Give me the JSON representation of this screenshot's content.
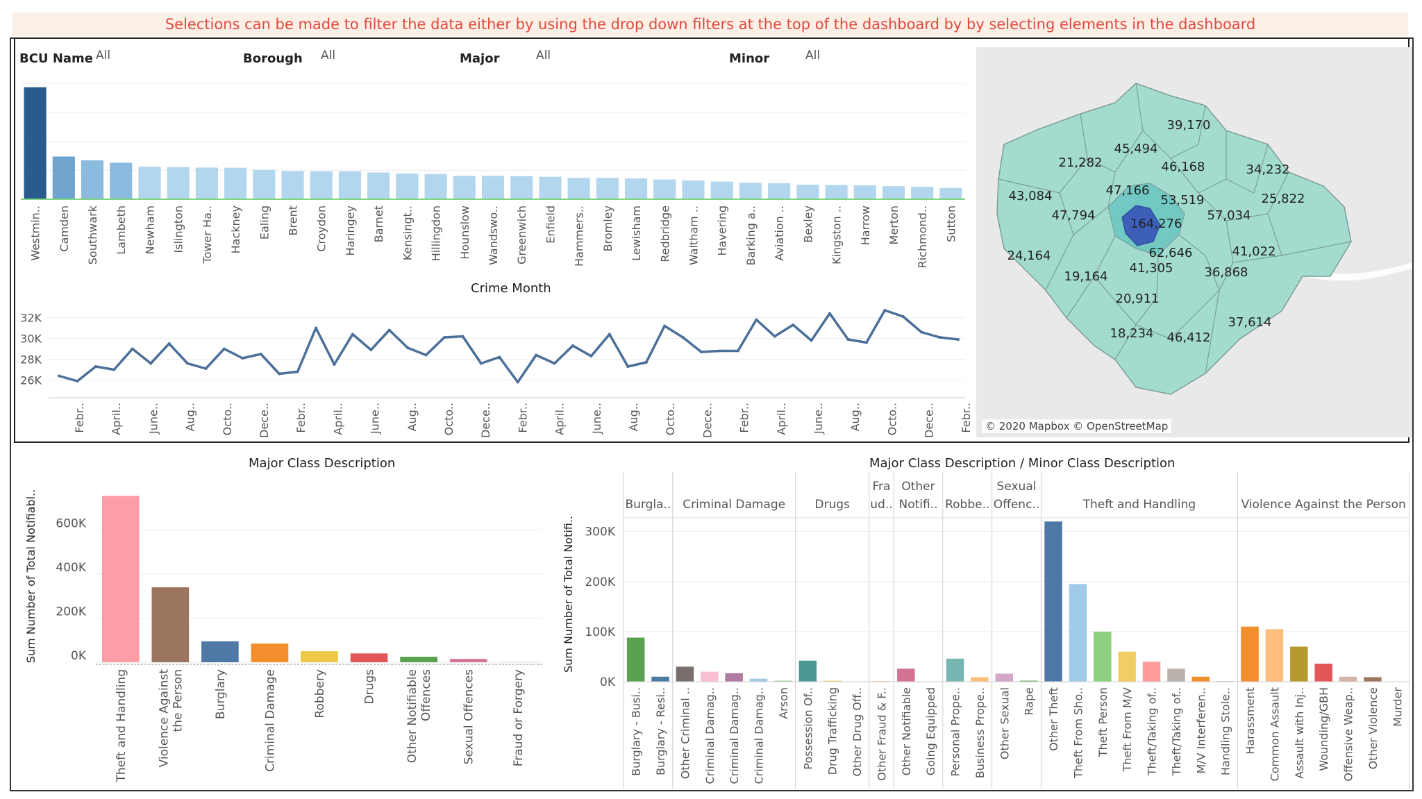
{
  "banner": "Selections can be made to filter the data either by using the drop down filters at the top of the dashboard by by selecting elements in the dashboard",
  "filters": [
    {
      "label": "BCU Name",
      "value": "All"
    },
    {
      "label": "Borough",
      "value": "All"
    },
    {
      "label": "Major",
      "value": "All"
    },
    {
      "label": "Minor",
      "value": "All"
    }
  ],
  "map": {
    "attribution": "© 2020 Mapbox © OpenStreetMap",
    "labels": [
      "39,170",
      "45,494",
      "21,282",
      "46,168",
      "34,232",
      "47,166",
      "53,519",
      "25,822",
      "43,084",
      "47,794",
      "164,276",
      "57,034",
      "62,646",
      "41,022",
      "24,164",
      "19,164",
      "41,305",
      "36,868",
      "20,911",
      "18,234",
      "46,412",
      "37,614"
    ]
  },
  "chart_data": [
    {
      "type": "bar",
      "categories": [
        "Westmin..",
        "Camden",
        "Southwark",
        "Lambeth",
        "Newham",
        "Islington",
        "Tower Ha..",
        "Hackney",
        "Ealing",
        "Brent",
        "Croydon",
        "Haringey",
        "Barnet",
        "Kensingt..",
        "Hillingdon",
        "Hounslow",
        "Wandswo..",
        "Greenwich",
        "Enfield",
        "Hammers..",
        "Bromley",
        "Lewisham",
        "Redbridge",
        "Waltham ..",
        "Havering",
        "Barking a..",
        "Aviation ..",
        "Bexley",
        "Kingston ..",
        "Harrow",
        "Merton",
        "Richmond..",
        "Sutton"
      ],
      "values": [
        164276,
        62646,
        57034,
        53519,
        47794,
        47166,
        46412,
        46168,
        43084,
        41305,
        41022,
        41022,
        39170,
        37614,
        36868,
        34232,
        34232,
        33900,
        33000,
        31500,
        31500,
        30500,
        29000,
        27500,
        25822,
        24164,
        23400,
        21282,
        20911,
        20500,
        19164,
        18234,
        16500
      ],
      "title": ""
    },
    {
      "type": "line",
      "title": "Crime Month",
      "x_tick_labels": [
        "Febr..",
        "April..",
        "June..",
        "Aug..",
        "Octo..",
        "Dece..",
        "Febr..",
        "April..",
        "June..",
        "Aug..",
        "Octo..",
        "Dece..",
        "Febr..",
        "April..",
        "June..",
        "Aug..",
        "Octo..",
        "Dece..",
        "Febr..",
        "April..",
        "June..",
        "Aug..",
        "Octo..",
        "Dece..",
        "Febr.."
      ],
      "y_tick_labels": [
        "26K",
        "28K",
        "30K",
        "32K"
      ],
      "ylim": [
        24500,
        32500
      ],
      "values": [
        26400,
        25900,
        27300,
        27000,
        29000,
        27600,
        29500,
        27600,
        27100,
        29000,
        28100,
        28500,
        26600,
        26800,
        31000,
        27500,
        30400,
        28900,
        30800,
        29100,
        28400,
        30100,
        30200,
        27600,
        28200,
        25800,
        28400,
        27600,
        29300,
        28300,
        30400,
        27300,
        27700,
        31200,
        30100,
        28700,
        28800,
        28800,
        31800,
        30200,
        31300,
        29800,
        32400,
        29900,
        29600,
        32700,
        32100,
        30600,
        30100,
        29900
      ],
      "color": "#4a6f99"
    },
    {
      "type": "bar",
      "title": "Major Class Description",
      "ylabel": "Sum Number of Total Notifiabl..",
      "y_tick_labels": [
        "0K",
        "200K",
        "400K",
        "600K"
      ],
      "ylim": [
        0,
        800000
      ],
      "categories": [
        "Theft and Handling",
        "Violence Against the Person",
        "Burglary",
        "Criminal Damage",
        "Robbery",
        "Drugs",
        "Other Notifiable Offences",
        "Sexual Offences",
        "Fraud or Forgery"
      ],
      "values": [
        755000,
        340000,
        95000,
        85000,
        50000,
        40000,
        25000,
        15000,
        1000
      ],
      "colors": [
        "#ff9da7",
        "#9c755f",
        "#4e79a7",
        "#f28e2b",
        "#edc948",
        "#e15759",
        "#59a14f",
        "#d37295",
        "#76b7b2"
      ]
    },
    {
      "type": "bar",
      "title": "Major Class Description / Minor Class Description",
      "ylabel": "Sum Number of Total Notifi..",
      "y_tick_labels": [
        "0K",
        "100K",
        "200K",
        "300K"
      ],
      "ylim": [
        0,
        330000
      ],
      "groups": [
        {
          "name": "Burgla..",
          "items": [
            {
              "label": "Burglary - Busi..",
              "value": 88000,
              "color": "#59a14f"
            },
            {
              "label": "Burglary - Resi..",
              "value": 10000,
              "color": "#4e79a7"
            }
          ]
        },
        {
          "name": "Criminal Damage",
          "items": [
            {
              "label": "Other Criminal ..",
              "value": 30000,
              "color": "#79706e"
            },
            {
              "label": "Criminal Damag..",
              "value": 20000,
              "color": "#fabfd2"
            },
            {
              "label": "Criminal Damag..",
              "value": 17000,
              "color": "#b07aa1"
            },
            {
              "label": "Criminal Damag..",
              "value": 6000,
              "color": "#a0cbe8"
            },
            {
              "label": "Arson",
              "value": 2000,
              "color": "#8cd17d"
            }
          ]
        },
        {
          "name": "Drugs",
          "items": [
            {
              "label": "Possession Of..",
              "value": 42000,
              "color": "#499894"
            },
            {
              "label": "Drug Trafficking",
              "value": 2000,
              "color": "#f1ce63"
            },
            {
              "label": "Other Drug Off..",
              "value": 500,
              "color": "#86bcb6"
            }
          ]
        },
        {
          "name": "Fra ud..",
          "items": [
            {
              "label": "Other Fraud & F..",
              "value": 1000,
              "color": "#f28e2b"
            }
          ]
        },
        {
          "name": "Other Notifi..",
          "items": [
            {
              "label": "Other Notifiable",
              "value": 26000,
              "color": "#d37295"
            },
            {
              "label": "Going Equipped",
              "value": 500,
              "color": "#e15759"
            }
          ]
        },
        {
          "name": "Robbe..",
          "items": [
            {
              "label": "Personal Prope..",
              "value": 46000,
              "color": "#76b7b2"
            },
            {
              "label": "Business Prope..",
              "value": 9000,
              "color": "#ffbe7d"
            }
          ]
        },
        {
          "name": "Sexual Offenc..",
          "items": [
            {
              "label": "Other Sexual",
              "value": 16000,
              "color": "#d4a6c8"
            },
            {
              "label": "Rape",
              "value": 2000,
              "color": "#59a14f"
            }
          ]
        },
        {
          "name": "Theft and Handling",
          "items": [
            {
              "label": "Other Theft",
              "value": 320000,
              "color": "#4e79a7"
            },
            {
              "label": "Theft From Sho..",
              "value": 195000,
              "color": "#a0cbe8"
            },
            {
              "label": "Theft Person",
              "value": 100000,
              "color": "#8cd17d"
            },
            {
              "label": "Theft From M/V",
              "value": 60000,
              "color": "#f1ce63"
            },
            {
              "label": "Theft/Taking of..",
              "value": 40000,
              "color": "#ff9d9a"
            },
            {
              "label": "Theft/Taking of..",
              "value": 26000,
              "color": "#bab0ac"
            },
            {
              "label": "M/V Interferen..",
              "value": 10000,
              "color": "#f28e2b"
            },
            {
              "label": "Handling Stole..",
              "value": 1000,
              "color": "#4e79a7"
            }
          ]
        },
        {
          "name": "Violence Against the Person",
          "items": [
            {
              "label": "Harassment",
              "value": 110000,
              "color": "#f28e2b"
            },
            {
              "label": "Common Assault",
              "value": 105000,
              "color": "#ffbe7d"
            },
            {
              "label": "Assault with Inj..",
              "value": 70000,
              "color": "#b6992d"
            },
            {
              "label": "Wounding/GBH",
              "value": 36000,
              "color": "#e15759"
            },
            {
              "label": "Offensive Weap..",
              "value": 10000,
              "color": "#d7b5a6"
            },
            {
              "label": "Other Violence",
              "value": 9000,
              "color": "#9d7660"
            },
            {
              "label": "Murder",
              "value": 200,
              "color": "#d37295"
            }
          ]
        }
      ]
    }
  ]
}
